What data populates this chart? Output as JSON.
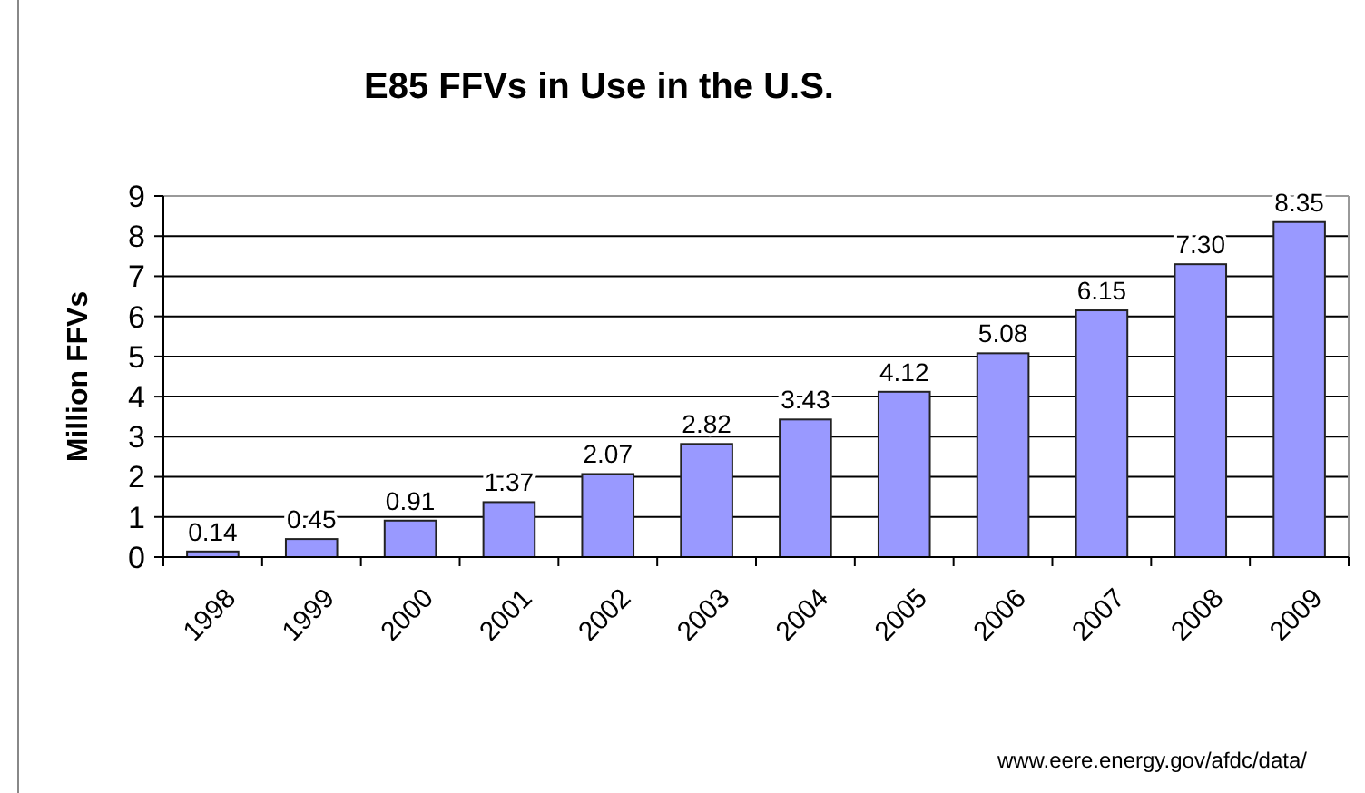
{
  "chart_data": {
    "type": "bar",
    "title": "E85 FFVs in Use in the U.S.",
    "ylabel": "Million FFVs",
    "categories": [
      "1998",
      "1999",
      "2000",
      "2001",
      "2002",
      "2003",
      "2004",
      "2005",
      "2006",
      "2007",
      "2008",
      "2009"
    ],
    "values": [
      0.14,
      0.45,
      0.91,
      1.37,
      2.07,
      2.82,
      3.43,
      4.12,
      5.08,
      6.15,
      7.3,
      8.35
    ],
    "value_labels": [
      "0.14",
      "0.45",
      "0.91",
      "1.37",
      "2.07",
      "2.82",
      "3.43",
      "4.12",
      "5.08",
      "6.15",
      "7.30",
      "8.35"
    ],
    "color": "#9999ff",
    "ylim": [
      0,
      9
    ],
    "yticks": [
      0,
      1,
      2,
      3,
      4,
      5,
      6,
      7,
      8,
      9
    ],
    "grid": "y",
    "annotations": [
      "www.eere.energy.gov/afdc/data/"
    ]
  }
}
